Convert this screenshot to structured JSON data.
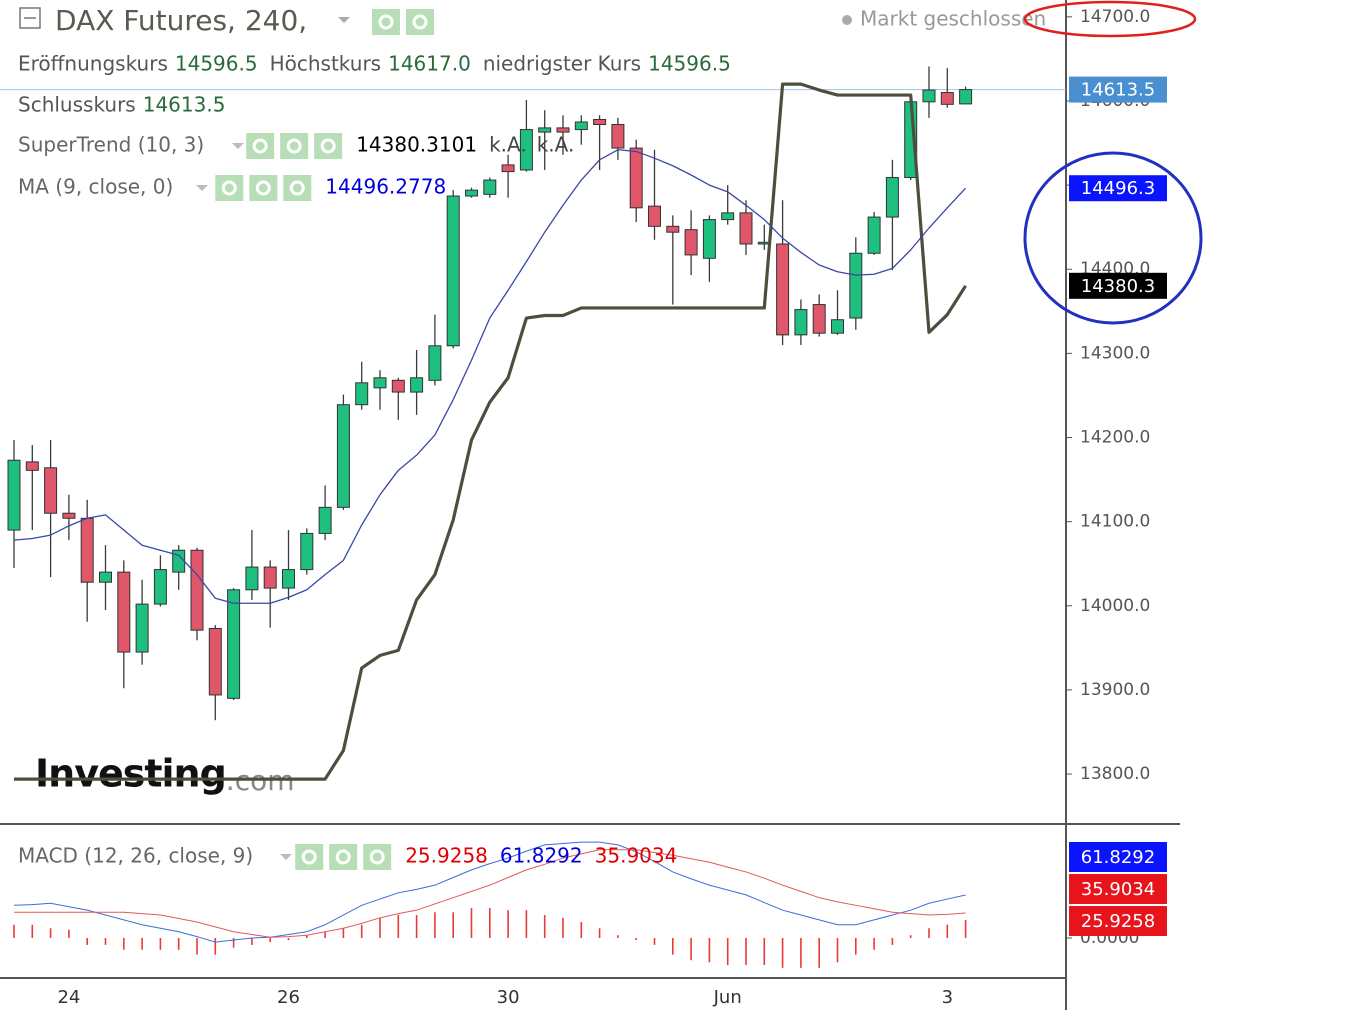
{
  "chart_data": [
    {
      "type": "candlestick",
      "title": "DAX Futures, 240,",
      "status": "Markt geschlossen",
      "watermark": [
        "Investing",
        ".com"
      ],
      "ohlc_legend": [
        {
          "name": "Eröffnungskurs",
          "label": "14596.5"
        },
        {
          "name": "Höchstkurs",
          "label": "14617.0"
        },
        {
          "name": "niedrigster Kurs",
          "label": "14596.5"
        },
        {
          "name": "Schlusskurs",
          "label": "14613.5"
        }
      ],
      "categories": [
        null,
        null,
        null,
        "24",
        null,
        null,
        null,
        null,
        null,
        null,
        null,
        null,
        null,
        null,
        null,
        "26",
        null,
        null,
        null,
        null,
        null,
        null,
        null,
        null,
        null,
        null,
        null,
        "30",
        null,
        null,
        null,
        null,
        null,
        null,
        null,
        null,
        null,
        null,
        null,
        "Jun",
        null,
        null,
        null,
        null,
        null,
        null,
        null,
        null,
        null,
        null,
        null,
        "3",
        null
      ],
      "open": [
        14090,
        14171,
        14164,
        14110,
        14104,
        14028,
        14040,
        13945,
        14002,
        14040,
        14066,
        13973,
        13890,
        14019,
        14046,
        14021,
        14043,
        14086,
        14117,
        14239,
        14259,
        14268,
        14254,
        14268,
        14309,
        14487,
        14489,
        14524,
        14518,
        14563,
        14568,
        14566,
        14578,
        14572,
        14544,
        14475,
        14451,
        14447,
        14413,
        14459,
        14467,
        14430,
        14430,
        14322,
        14358,
        14324,
        14342,
        14419,
        14462,
        14509,
        14599,
        14610,
        14596.5
      ],
      "high": [
        14197,
        14191,
        14197,
        14132,
        14126,
        14072,
        14054,
        14031,
        14060,
        14072,
        14069,
        13977,
        14021,
        14090,
        14054,
        14090,
        14092,
        14143,
        14251,
        14290,
        14280,
        14271,
        14304,
        14346,
        14494,
        14497,
        14509,
        14536,
        14601,
        14589,
        14583,
        14583,
        14583,
        14580,
        14554,
        14542,
        14464,
        14470,
        14464,
        14500,
        14482,
        14453,
        14482,
        14364,
        14370,
        14375,
        14438,
        14468,
        14530,
        14605,
        14641,
        14639,
        14617
      ],
      "low": [
        14045,
        14090,
        14034,
        14078,
        13981,
        13995,
        13902,
        13930,
        13999,
        14019,
        13959,
        13864,
        13888,
        14007,
        13974,
        14007,
        14037,
        14078,
        14114,
        14233,
        14233,
        14221,
        14227,
        14262,
        14306,
        14485,
        14485,
        14485,
        14516,
        14518,
        14536,
        14548,
        14518,
        14530,
        14456,
        14435,
        14358,
        14393,
        14385,
        14453,
        14417,
        14423,
        14310,
        14310,
        14320,
        14322,
        14328,
        14417,
        14399,
        14506,
        14580,
        14592,
        14596.5
      ],
      "close": [
        14173,
        14161,
        14110,
        14104,
        14028,
        14040,
        13945,
        14002,
        14043,
        14066,
        13971,
        13894,
        14019,
        14046,
        14021,
        14043,
        14086,
        14117,
        14239,
        14265,
        14271,
        14254,
        14271,
        14309,
        14487,
        14494,
        14506,
        14516,
        14566,
        14568,
        14563,
        14575,
        14572,
        14544,
        14473,
        14451,
        14444,
        14417,
        14459,
        14467,
        14430,
        14432,
        14322,
        14352,
        14324,
        14340,
        14419,
        14462,
        14509,
        14599,
        14613,
        14596,
        14613.5
      ],
      "up_color": "#1fbf7f",
      "down_color": "#e0566a",
      "series": [
        {
          "name": "SuperTrend (10, 3)",
          "color": "#4e4e3e",
          "legend_color": "#000000",
          "extra": [
            "k.A.",
            "k.A."
          ],
          "values": [
            13794,
            13794,
            13794,
            13794,
            13794,
            13794,
            13794,
            13794,
            13794,
            13794,
            13794,
            13794,
            13794,
            13794,
            13794,
            13794,
            13794,
            13794,
            13828,
            13926,
            13941,
            13947,
            14007,
            14037,
            14102,
            14197,
            14242,
            14271,
            14342,
            14345,
            14345,
            14354,
            14354,
            14354,
            14354,
            14354,
            14354,
            14354,
            14354,
            14354,
            14354,
            14354,
            14620,
            14620,
            14613,
            14607,
            14607,
            14607,
            14607,
            14607,
            14325,
            14346,
            14380.3101
          ]
        },
        {
          "name": "MA (9, close, 0)",
          "color": "#3848a8",
          "legend_color": "#0000dd",
          "values": [
            14078,
            14080,
            14084,
            14095,
            14104,
            14108,
            14090,
            14072,
            14066,
            14060,
            14037,
            14009,
            14003,
            14003,
            14003,
            14010,
            14019,
            14037,
            14054,
            14096,
            14132,
            14161,
            14179,
            14203,
            14245,
            14292,
            14342,
            14375,
            14409,
            14444,
            14476,
            14506,
            14530,
            14542,
            14540,
            14532,
            14523,
            14512,
            14500,
            14492,
            14476,
            14459,
            14437,
            14420,
            14405,
            14397,
            14393,
            14394,
            14401,
            14423,
            14449,
            14473,
            14496.2778
          ]
        }
      ],
      "price_tags": [
        {
          "value": 14613.5,
          "label": "14613.5",
          "color": "#4a90d0"
        },
        {
          "value": 14496.2778,
          "label": "14496.3",
          "color": "#0a14ff"
        },
        {
          "value": 14380.3101,
          "label": "14380.3",
          "color": "#000000"
        }
      ],
      "ylim": [
        13743,
        14720
      ],
      "yticks": [
        {
          "value": 13800,
          "label": "13800.0"
        },
        {
          "value": 13900,
          "label": "13900.0"
        },
        {
          "value": 14000,
          "label": "14000.0"
        },
        {
          "value": 14100,
          "label": "14100.0"
        },
        {
          "value": 14200,
          "label": "14200.0"
        },
        {
          "value": 14300,
          "label": "14300.0"
        },
        {
          "value": 14400,
          "label": "14400.0"
        },
        {
          "value": 14500,
          "label": "14500.0"
        },
        {
          "value": 14600,
          "label": "14600.0"
        },
        {
          "value": 14700,
          "label": "14700.0"
        }
      ]
    },
    {
      "type": "macd",
      "name": "MACD (12, 26, close, 9)",
      "series": [
        {
          "name": "Histogram",
          "color": "#e83a3a",
          "legend_color": "#e00000",
          "values": [
            19,
            19,
            14,
            12,
            -10,
            -10,
            -17,
            -17,
            -17,
            -17,
            -24,
            -24,
            -14,
            -10,
            -6,
            -3,
            4,
            9,
            14,
            19,
            29,
            33,
            33,
            37,
            37,
            43,
            43,
            40,
            40,
            33,
            29,
            23,
            14,
            4,
            -3,
            -10,
            -24,
            -32,
            -35,
            -39,
            -39,
            -39,
            -43,
            -43,
            -43,
            -35,
            -24,
            -17,
            -10,
            4,
            14,
            19,
            25.9258
          ]
        },
        {
          "name": "MACD",
          "color": "#3a6fd8",
          "legend_color": "#0000dd",
          "values": [
            47,
            48,
            50,
            45,
            40,
            33,
            26,
            19,
            14,
            9,
            2,
            -6,
            -3,
            0,
            1,
            5,
            9,
            19,
            33,
            47,
            56,
            65,
            70,
            76,
            87,
            98,
            107,
            115,
            125,
            134,
            136,
            138,
            138,
            134,
            124,
            110,
            95,
            85,
            76,
            69,
            62,
            51,
            40,
            33,
            26,
            19,
            19,
            26,
            33,
            40,
            50,
            56,
            61.8292
          ]
        },
        {
          "name": "Signal",
          "color": "#e05a5a",
          "legend_color": "#e00000",
          "values": [
            37,
            37,
            37,
            37,
            37,
            37,
            37,
            35,
            33,
            28,
            23,
            16,
            9,
            5,
            1,
            2,
            4,
            9,
            14,
            21,
            29,
            35,
            40,
            49,
            58,
            67,
            76,
            87,
            98,
            106,
            115,
            121,
            127,
            127,
            127,
            123,
            119,
            114,
            109,
            102,
            95,
            86,
            76,
            67,
            58,
            52,
            47,
            42,
            37,
            35,
            33,
            34,
            35.9034
          ]
        }
      ],
      "ylim": [
        -57.6,
        164
      ],
      "yticks": [
        {
          "value": 0,
          "label": "0.0000"
        }
      ]
    }
  ]
}
